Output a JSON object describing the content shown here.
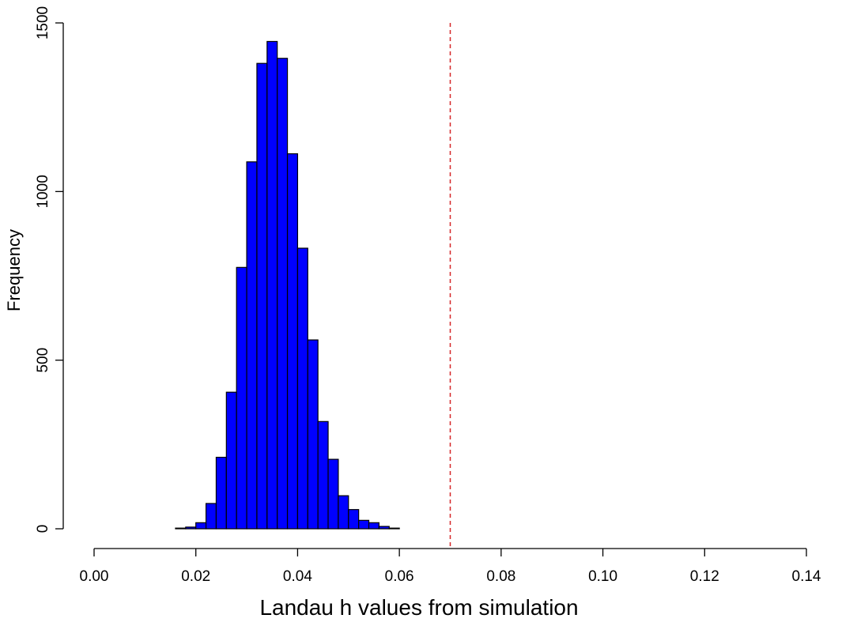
{
  "chart_data": {
    "type": "bar",
    "subtype": "histogram",
    "title": "",
    "xlabel": "Landau h values from simulation",
    "ylabel": "Frequency",
    "xlim": [
      0.0,
      0.14
    ],
    "ylim": [
      0,
      1500
    ],
    "x_ticks": [
      "0.00",
      "0.02",
      "0.04",
      "0.06",
      "0.08",
      "0.10",
      "0.12",
      "0.14"
    ],
    "y_ticks": [
      "0",
      "500",
      "1000",
      "1500"
    ],
    "grid": false,
    "legend": "none",
    "bin_width": 0.002,
    "bins": [
      {
        "x0": 0.016,
        "x1": 0.018,
        "count": 2
      },
      {
        "x0": 0.018,
        "x1": 0.02,
        "count": 5
      },
      {
        "x0": 0.02,
        "x1": 0.022,
        "count": 18
      },
      {
        "x0": 0.022,
        "x1": 0.024,
        "count": 75
      },
      {
        "x0": 0.024,
        "x1": 0.026,
        "count": 212
      },
      {
        "x0": 0.026,
        "x1": 0.028,
        "count": 405
      },
      {
        "x0": 0.028,
        "x1": 0.03,
        "count": 775
      },
      {
        "x0": 0.03,
        "x1": 0.032,
        "count": 1088
      },
      {
        "x0": 0.032,
        "x1": 0.034,
        "count": 1380
      },
      {
        "x0": 0.034,
        "x1": 0.036,
        "count": 1445
      },
      {
        "x0": 0.036,
        "x1": 0.038,
        "count": 1395
      },
      {
        "x0": 0.038,
        "x1": 0.04,
        "count": 1112
      },
      {
        "x0": 0.04,
        "x1": 0.042,
        "count": 832
      },
      {
        "x0": 0.042,
        "x1": 0.044,
        "count": 560
      },
      {
        "x0": 0.044,
        "x1": 0.046,
        "count": 318
      },
      {
        "x0": 0.046,
        "x1": 0.048,
        "count": 206
      },
      {
        "x0": 0.048,
        "x1": 0.05,
        "count": 98
      },
      {
        "x0": 0.05,
        "x1": 0.052,
        "count": 57
      },
      {
        "x0": 0.052,
        "x1": 0.054,
        "count": 25
      },
      {
        "x0": 0.054,
        "x1": 0.056,
        "count": 18
      },
      {
        "x0": 0.056,
        "x1": 0.058,
        "count": 7
      },
      {
        "x0": 0.058,
        "x1": 0.06,
        "count": 2
      }
    ],
    "reference_line": {
      "x": 0.07,
      "style": "dashed",
      "color": "#d62728"
    },
    "colors": {
      "bar_fill": "#0000ff",
      "bar_stroke": "#000000",
      "axis": "#000000"
    }
  }
}
